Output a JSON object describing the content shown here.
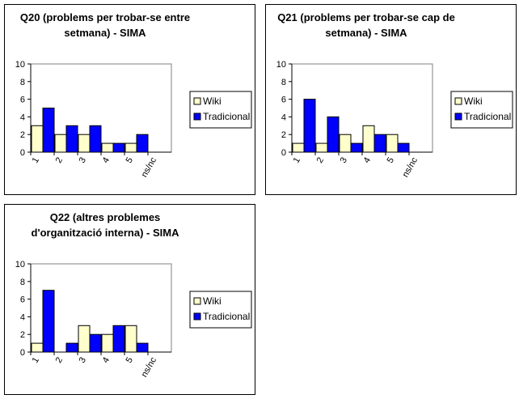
{
  "colors": {
    "wiki": "#ffffcc",
    "tradicional": "#0000ff",
    "axis": "#000000"
  },
  "chart_data": [
    {
      "type": "bar",
      "title": [
        "Q20 (problems per trobar-se entre",
        "setmana) - SIMA"
      ],
      "categories": [
        "1",
        "2",
        "3",
        "4",
        "5",
        "ns/nc"
      ],
      "ylim": [
        0,
        10
      ],
      "yticks": [
        "0",
        "2",
        "4",
        "6",
        "8",
        "10"
      ],
      "legend_position": "right",
      "grid": false,
      "series": [
        {
          "name": "Wiki",
          "values": [
            3,
            2,
            2,
            1,
            1,
            0
          ]
        },
        {
          "name": "Tradicional",
          "values": [
            5,
            3,
            3,
            1,
            2,
            0
          ]
        }
      ]
    },
    {
      "type": "bar",
      "title": [
        "Q21 (problems per trobar-se cap de",
        "setmana) - SIMA"
      ],
      "categories": [
        "1",
        "2",
        "3",
        "4",
        "5",
        "ns/nc"
      ],
      "ylim": [
        0,
        10
      ],
      "yticks": [
        "0",
        "2",
        "4",
        "6",
        "8",
        "10"
      ],
      "legend_position": "right",
      "grid": false,
      "series": [
        {
          "name": "Wiki",
          "values": [
            1,
            1,
            2,
            3,
            2,
            0
          ]
        },
        {
          "name": "Tradicional",
          "values": [
            6,
            4,
            1,
            2,
            1,
            0
          ]
        }
      ]
    },
    {
      "type": "bar",
      "title": [
        "Q22 (altres problemes",
        "d'organització interna) - SIMA"
      ],
      "categories": [
        "1",
        "2",
        "3",
        "4",
        "5",
        "ns/nc"
      ],
      "ylim": [
        0,
        10
      ],
      "yticks": [
        "0",
        "2",
        "4",
        "6",
        "8",
        "10"
      ],
      "legend_position": "right",
      "grid": false,
      "series": [
        {
          "name": "Wiki",
          "values": [
            1,
            0,
            3,
            2,
            3,
            0
          ]
        },
        {
          "name": "Tradicional",
          "values": [
            7,
            1,
            2,
            3,
            1,
            0
          ]
        }
      ]
    }
  ]
}
